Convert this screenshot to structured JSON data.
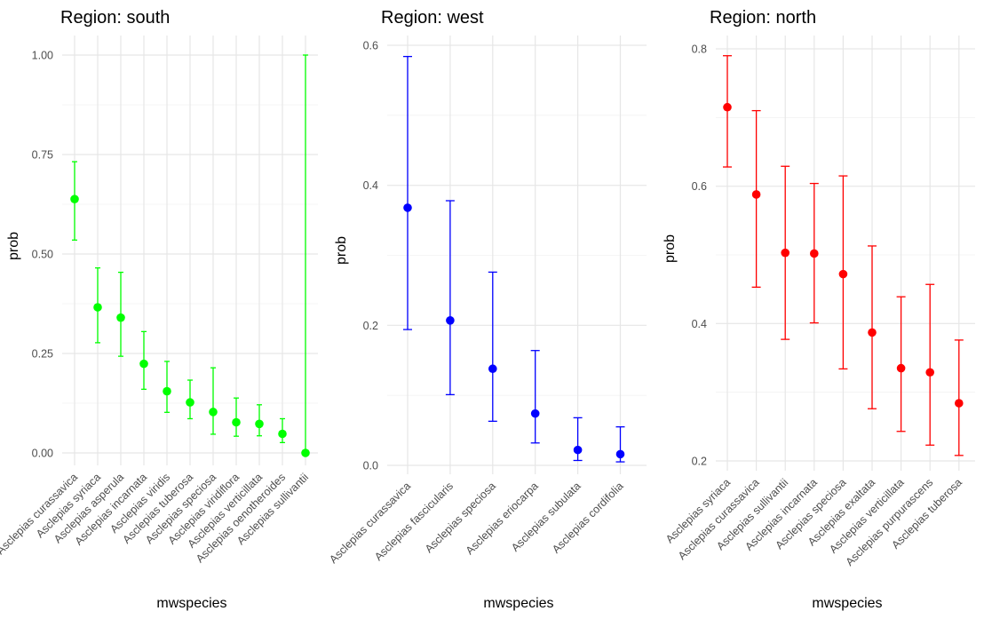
{
  "chart_data": [
    {
      "type": "scatter",
      "title": "Region: south",
      "xlabel": "mwspecies",
      "ylabel": "prob",
      "ylim": [
        0,
        1
      ],
      "yticks": [
        0.0,
        0.25,
        0.5,
        0.75,
        1.0
      ],
      "ytick_labels": [
        "0.00",
        "0.25",
        "0.50",
        "0.75",
        "1.00"
      ],
      "color": "#00ff00",
      "grid": true,
      "categories": [
        "Asclepias curassavica",
        "Asclepias syriaca",
        "Asclepias asperula",
        "Asclepias incarnata",
        "Asclepias viridis",
        "Asclepias tuberosa",
        "Asclepias speciosa",
        "Asclepias viridiflora",
        "Asclepias verticillata",
        "Asclepias oenotheroides",
        "Asclepias sullivantii"
      ],
      "values": [
        0.638,
        0.366,
        0.34,
        0.224,
        0.155,
        0.127,
        0.103,
        0.077,
        0.073,
        0.048,
        0.0
      ],
      "lower": [
        0.535,
        0.277,
        0.243,
        0.16,
        0.102,
        0.086,
        0.047,
        0.042,
        0.043,
        0.026,
        0.0
      ],
      "upper": [
        0.732,
        0.465,
        0.454,
        0.305,
        0.23,
        0.183,
        0.214,
        0.138,
        0.121,
        0.086,
        1.0
      ]
    },
    {
      "type": "scatter",
      "title": "Region: west",
      "xlabel": "mwspecies",
      "ylabel": "prob",
      "ylim": [
        0,
        0.6
      ],
      "yticks": [
        0.0,
        0.2,
        0.4,
        0.6
      ],
      "ytick_labels": [
        "0.0",
        "0.2",
        "0.4",
        "0.6"
      ],
      "color": "#0000ff",
      "grid": true,
      "categories": [
        "Asclepias curassavica",
        "Asclepias fascicularis",
        "Asclepias speciosa",
        "Asclepias eriocarpa",
        "Asclepias subulata",
        "Asclepias cordifolia"
      ],
      "values": [
        0.368,
        0.207,
        0.138,
        0.074,
        0.022,
        0.016
      ],
      "lower": [
        0.194,
        0.101,
        0.063,
        0.032,
        0.007,
        0.005
      ],
      "upper": [
        0.584,
        0.378,
        0.276,
        0.164,
        0.068,
        0.055
      ]
    },
    {
      "type": "scatter",
      "title": "Region: north",
      "xlabel": "mwspecies",
      "ylabel": "prob",
      "ylim": [
        0.2,
        0.8
      ],
      "yticks": [
        0.2,
        0.4,
        0.6,
        0.8
      ],
      "ytick_labels": [
        "0.2",
        "0.4",
        "0.6",
        "0.8"
      ],
      "color": "#ff0000",
      "grid": true,
      "categories": [
        "Asclepias syriaca",
        "Asclepias curassavica",
        "Asclepias sullivantii",
        "Asclepias incarnata",
        "Asclepias speciosa",
        "Asclepias exaltata",
        "Asclepias verticillata",
        "Asclepias purpurascens",
        "Asclepias tuberosa"
      ],
      "values": [
        0.715,
        0.588,
        0.503,
        0.502,
        0.472,
        0.387,
        0.335,
        0.329,
        0.284
      ],
      "lower": [
        0.628,
        0.453,
        0.377,
        0.401,
        0.334,
        0.276,
        0.243,
        0.223,
        0.208
      ],
      "upper": [
        0.79,
        0.71,
        0.629,
        0.604,
        0.615,
        0.513,
        0.439,
        0.457,
        0.376
      ]
    }
  ]
}
